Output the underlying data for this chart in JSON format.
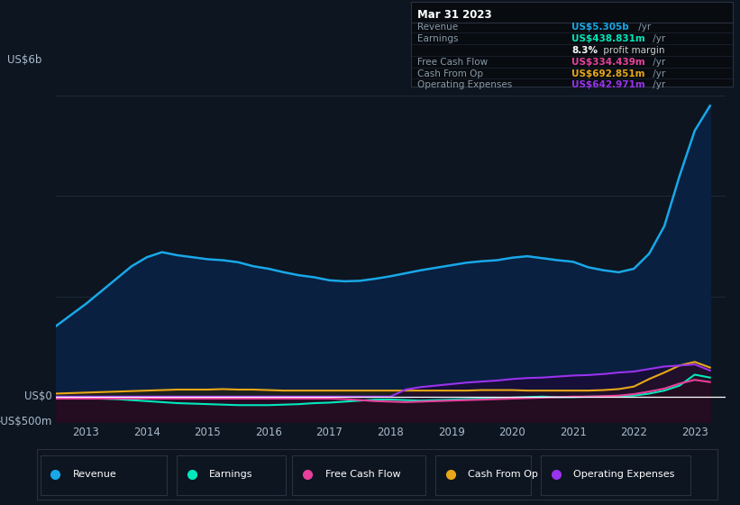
{
  "bg_color": "#0d1520",
  "plot_bg_color": "#0d1520",
  "chart_fill_color": "#0a2040",
  "grid_color": "#1a2a3a",
  "text_color": "#aabbcc",
  "ylabel_top": "US$6b",
  "ylabel_zero": "US$0",
  "ylabel_neg": "-US$500m",
  "years": [
    2012.5,
    2013.0,
    2013.25,
    2013.5,
    2013.75,
    2014.0,
    2014.25,
    2014.5,
    2014.75,
    2015.0,
    2015.25,
    2015.5,
    2015.75,
    2016.0,
    2016.25,
    2016.5,
    2016.75,
    2017.0,
    2017.25,
    2017.5,
    2017.75,
    2018.0,
    2018.25,
    2018.5,
    2018.75,
    2019.0,
    2019.25,
    2019.5,
    2019.75,
    2020.0,
    2020.25,
    2020.5,
    2020.75,
    2021.0,
    2021.25,
    2021.5,
    2021.75,
    2022.0,
    2022.25,
    2022.5,
    2022.75,
    2023.0,
    2023.25
  ],
  "revenue": [
    1.4,
    1.85,
    2.1,
    2.35,
    2.6,
    2.78,
    2.88,
    2.82,
    2.78,
    2.74,
    2.72,
    2.68,
    2.6,
    2.55,
    2.48,
    2.42,
    2.38,
    2.32,
    2.3,
    2.31,
    2.35,
    2.4,
    2.46,
    2.52,
    2.57,
    2.62,
    2.67,
    2.7,
    2.72,
    2.77,
    2.8,
    2.76,
    2.72,
    2.69,
    2.58,
    2.52,
    2.48,
    2.55,
    2.85,
    3.4,
    4.4,
    5.305,
    5.8
  ],
  "earnings": [
    -0.04,
    -0.03,
    -0.04,
    -0.05,
    -0.07,
    -0.09,
    -0.11,
    -0.13,
    -0.14,
    -0.15,
    -0.16,
    -0.17,
    -0.17,
    -0.17,
    -0.16,
    -0.15,
    -0.13,
    -0.12,
    -0.1,
    -0.08,
    -0.06,
    -0.06,
    -0.07,
    -0.08,
    -0.07,
    -0.06,
    -0.05,
    -0.04,
    -0.03,
    -0.02,
    -0.01,
    0.0,
    -0.01,
    -0.01,
    0.0,
    0.0,
    0.01,
    0.02,
    0.06,
    0.12,
    0.22,
    0.438,
    0.38
  ],
  "free_cash_flow": [
    -0.04,
    -0.04,
    -0.04,
    -0.04,
    -0.04,
    -0.04,
    -0.04,
    -0.04,
    -0.04,
    -0.04,
    -0.04,
    -0.04,
    -0.04,
    -0.04,
    -0.04,
    -0.04,
    -0.04,
    -0.04,
    -0.05,
    -0.07,
    -0.09,
    -0.1,
    -0.11,
    -0.1,
    -0.09,
    -0.08,
    -0.07,
    -0.06,
    -0.05,
    -0.04,
    -0.03,
    -0.02,
    -0.01,
    0.0,
    0.0,
    0.01,
    0.02,
    0.05,
    0.1,
    0.16,
    0.26,
    0.334,
    0.29
  ],
  "cash_from_op": [
    0.06,
    0.08,
    0.09,
    0.1,
    0.11,
    0.12,
    0.13,
    0.14,
    0.14,
    0.14,
    0.15,
    0.14,
    0.14,
    0.13,
    0.12,
    0.12,
    0.12,
    0.12,
    0.12,
    0.12,
    0.12,
    0.12,
    0.12,
    0.12,
    0.12,
    0.12,
    0.12,
    0.13,
    0.13,
    0.13,
    0.12,
    0.12,
    0.12,
    0.12,
    0.12,
    0.13,
    0.15,
    0.2,
    0.35,
    0.48,
    0.62,
    0.692,
    0.58
  ],
  "operating_expenses": [
    0.0,
    0.0,
    0.0,
    0.0,
    0.0,
    0.0,
    0.0,
    0.0,
    0.0,
    0.0,
    0.0,
    0.0,
    0.0,
    0.0,
    0.0,
    0.0,
    0.0,
    0.0,
    0.0,
    0.0,
    0.0,
    0.0,
    0.14,
    0.19,
    0.22,
    0.25,
    0.28,
    0.3,
    0.32,
    0.35,
    0.37,
    0.38,
    0.4,
    0.42,
    0.43,
    0.45,
    0.48,
    0.5,
    0.55,
    0.6,
    0.62,
    0.642,
    0.52
  ],
  "revenue_color": "#18a8e8",
  "earnings_color": "#00e8bb",
  "fcf_color": "#e8409a",
  "cashop_color": "#e8a818",
  "opex_color": "#9933ee",
  "ylim": [
    -0.5,
    6.5
  ],
  "xlim": [
    2012.5,
    2023.5
  ],
  "xticks": [
    2013,
    2014,
    2015,
    2016,
    2017,
    2018,
    2019,
    2020,
    2021,
    2022,
    2023
  ],
  "info_box": {
    "title": "Mar 31 2023",
    "rows": [
      {
        "label": "Revenue",
        "value": "US$5.305b",
        "unit": " /yr",
        "value_color": "#18a8e8"
      },
      {
        "label": "Earnings",
        "value": "US$438.831m",
        "unit": " /yr",
        "value_color": "#00e8bb"
      },
      {
        "label": "",
        "value": "8.3%",
        "unit": " profit margin",
        "value_color": "#ffffff",
        "unit_color": "#cccccc"
      },
      {
        "label": "Free Cash Flow",
        "value": "US$334.439m",
        "unit": " /yr",
        "value_color": "#e8409a"
      },
      {
        "label": "Cash From Op",
        "value": "US$692.851m",
        "unit": " /yr",
        "value_color": "#e8a818"
      },
      {
        "label": "Operating Expenses",
        "value": "US$642.971m",
        "unit": " /yr",
        "value_color": "#9933ee"
      }
    ]
  },
  "legend": [
    {
      "label": "Revenue",
      "color": "#18a8e8"
    },
    {
      "label": "Earnings",
      "color": "#00e8bb"
    },
    {
      "label": "Free Cash Flow",
      "color": "#e8409a"
    },
    {
      "label": "Cash From Op",
      "color": "#e8a818"
    },
    {
      "label": "Operating Expenses",
      "color": "#9933ee"
    }
  ]
}
